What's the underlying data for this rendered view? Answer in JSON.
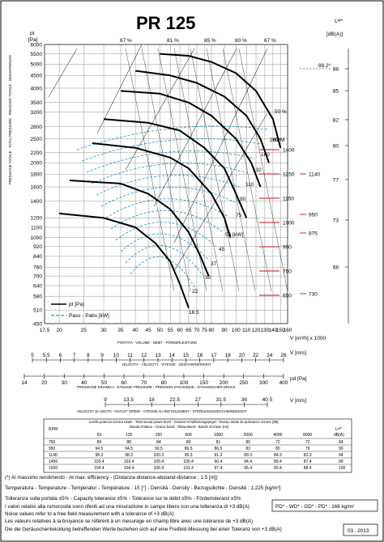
{
  "title": "PR 125",
  "date_box": "03 . 2013",
  "main": {
    "y_label_unit": "pt\n[Pa]",
    "y_axis_caption": "PRESSIONE TOTALE . TOTAL PRESSURE . PRESSION TOTALE . GESAMTDRUCK",
    "y_ticks": [
      "6000",
      "5500",
      "5000",
      "4500",
      "4000",
      "3500",
      "3200",
      "2800",
      "2500",
      "2200",
      "2000",
      "1800",
      "1600",
      "1400",
      "1200",
      "1100",
      "1000",
      "920",
      "840",
      "760",
      "700",
      "640",
      "580",
      "510",
      "450"
    ],
    "x_ticks": [
      "17.5",
      "20",
      "25",
      "30",
      "35",
      "40",
      "45",
      "50",
      "55",
      "60",
      "65",
      "70",
      "75",
      "80",
      "90",
      "100",
      "110",
      "120",
      "130",
      "140",
      "150",
      "160"
    ],
    "x_unit": "V [m³/h] x 1000",
    "x_caption": "PORTATA - VOLUME - DEBIT - FÖRDERLEISTUNG",
    "lw_label": "Lᵂ*\n[dB(A)]",
    "lw_ticks": [
      "88",
      "85",
      "82",
      "80",
      "77",
      "73",
      "68"
    ],
    "lw_marker": "88.2*",
    "efficiency_labels": [
      "67 %",
      "81 %",
      "85 %",
      "80 %",
      "67 %",
      "50 %"
    ],
    "legend": {
      "pt": "pt [Pa]",
      "power": "Pass - Pabs [kW]"
    },
    "power_labels": [
      "200",
      "160",
      "132",
      "110",
      "90",
      "75",
      "55 [kW]",
      "45",
      "37",
      "30",
      "22",
      "18.5"
    ],
    "rpm_label": "RPM",
    "rpm_values": [
      "1400",
      "1250",
      "1150",
      "1000",
      "900",
      "750",
      "650"
    ],
    "rpm_right": [
      "1140",
      "950",
      "875",
      "730"
    ]
  },
  "velocity_scales": {
    "v_ms_ticks": [
      "5",
      "5.5",
      "6",
      "7",
      "8",
      "9",
      "10",
      "11",
      "12",
      "13",
      "14",
      "15",
      "16",
      "17",
      "18",
      "20",
      "22",
      "24",
      "26"
    ],
    "v_ms_unit": "V [m/s]",
    "v_ms_caption": "VELOCITA' - VELOCITY - VITESSE - GESCHWINDIGKEIT",
    "pd_ticks": [
      "14",
      "20",
      "30",
      "40",
      "50",
      "60",
      "70",
      "80",
      "100",
      "150",
      "200",
      "250",
      "300",
      "400"
    ],
    "pd_unit": "pd [Pa]",
    "pd_caption": "PRESSIONE DINAMICA - DYNAMIC PRESSURE - PRESSION DYNAMIQUE - DYNAMISCHER DRUCK",
    "vout_ticks": [
      "9",
      "13.5",
      "18",
      "22.5",
      "27",
      "31.5",
      "36",
      "40.5"
    ],
    "vout_unit": "V [m/s]",
    "vout_caption": "VELOCITA' DI USCITA - OUTLET SPEED - VITESSE AU REFOULEMENT - STRÖMUNGSGESCHWINDIGKEIT"
  },
  "table": {
    "caption1": "Livello potenza sonora totale - Total sound power level - Gesamt schalleistungspegel - Niveau totale de puissance sonore [dB]",
    "caption2": "Banda d'ottava - Octave band - Oktav-Band - Bande d'octave [Hz]",
    "rpm_header": "RPM",
    "lw_header": "Lᵂ*\ndB(A)",
    "bands": [
      "63",
      "125",
      "250",
      "500",
      "1000",
      "2000",
      "4000",
      "8000"
    ],
    "rows": [
      {
        "rpm": "750",
        "vals": [
          "89",
          "88",
          "84",
          "80",
          "81",
          "80",
          "72",
          "72"
        ],
        "lw": "84"
      },
      {
        "rpm": "950",
        "vals": [
          "94.5",
          "94.5",
          "90.5",
          "86.5",
          "86.5",
          "83",
          "80",
          "79"
        ],
        "lw": "90"
      },
      {
        "rpm": "1140",
        "vals": [
          "98.3",
          "98.3",
          "100.3",
          "95.3",
          "91.3",
          "89.3",
          "84.3",
          "82.3"
        ],
        "lw": "94"
      },
      {
        "rpm": "1450",
        "vals": [
          "103.4",
          "103.4",
          "105.4",
          "100.4",
          "96.4",
          "94.4",
          "89.4",
          "87.4"
        ],
        "lw": "99"
      },
      {
        "rpm": "1500",
        "vals": [
          "104.4",
          "104.4",
          "106.4",
          "101.4",
          "97.4",
          "95.4",
          "90.4",
          "88.4"
        ],
        "lw": "100"
      }
    ]
  },
  "notes": [
    "(*) Al massimo rendimento - At max. efficiency - (Distanza-distance-abstand-distance : 1.5 [m])",
    "Temperatura - Temperature - Temperatur - Température : 15 [°] - Densità - Density - Bezugsdichte - Densité : 1,225 [kg/m³]",
    "Tolleranza sulla portata ±5% - Capacity tolerance ±5% - Tolérance sur le débit ±5% - Fördertoleranz ±5%",
    "I valori relativi alla rumorosità sono riferiti ad una misurazione in campo libero con una tolleranza di +3 dB(A)",
    "Noise values refer to a free field measurement with a tolerance of +3 dB(A)",
    "Les valeurs relatives à la bruyance se réfèrent à un mesurage en champ libre avec une tolérance de +3 dB(A)",
    "Die die Geräuschentwicklung betreffenden Werte beziehen sich auf eine Freifeld-Messung bei einer Toleranz von +3 dB(A)"
  ],
  "pd_box": "PD* - WD* - GD* - PD* : 166 kg/m²",
  "chart_data": {
    "type": "line",
    "title": "PR 125",
    "xlabel": "V [m³/h] x 1000",
    "ylabel": "pt [Pa]",
    "xscale": "log",
    "yscale": "log",
    "xlim": [
      17.5,
      160
    ],
    "ylim": [
      450,
      6000
    ],
    "series": [
      {
        "name": "1400",
        "x": [
          50,
          65,
          80,
          100,
          120,
          140,
          150
        ],
        "y": [
          5500,
          5400,
          5100,
          4600,
          3900,
          3000,
          2300
        ]
      },
      {
        "name": "1250",
        "x": [
          40,
          55,
          70,
          90,
          110,
          125,
          135
        ],
        "y": [
          4700,
          4500,
          4200,
          3700,
          3100,
          2500,
          2000
        ]
      },
      {
        "name": "1150",
        "x": [
          35,
          50,
          65,
          80,
          100,
          115,
          125
        ],
        "y": [
          3900,
          3800,
          3500,
          3100,
          2500,
          2000,
          1600
        ]
      },
      {
        "name": "1000",
        "x": [
          30,
          45,
          60,
          75,
          90,
          100,
          110
        ],
        "y": [
          3000,
          2900,
          2700,
          2300,
          1900,
          1500,
          1200
        ]
      },
      {
        "name": "900",
        "x": [
          27,
          40,
          55,
          65,
          80,
          90,
          95
        ],
        "y": [
          2400,
          2300,
          2100,
          1900,
          1500,
          1200,
          1000
        ]
      },
      {
        "name": "750",
        "x": [
          22,
          35,
          45,
          55,
          65,
          72,
          78
        ],
        "y": [
          1700,
          1650,
          1500,
          1300,
          1050,
          850,
          700
        ]
      },
      {
        "name": "650",
        "x": [
          20,
          30,
          40,
          48,
          55,
          60,
          65
        ],
        "y": [
          1250,
          1200,
          1100,
          950,
          800,
          650,
          520
        ]
      }
    ],
    "legend": "bottom-left",
    "grid": true
  }
}
